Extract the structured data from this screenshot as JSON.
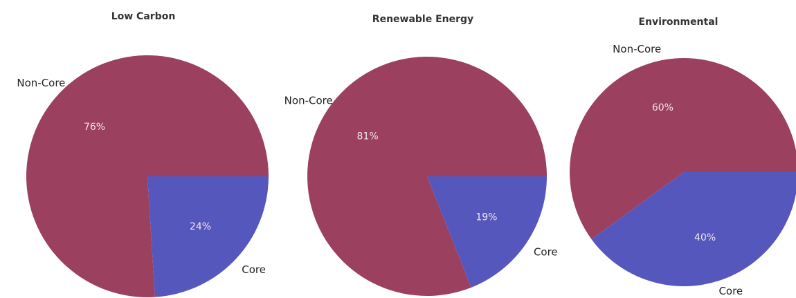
{
  "chart_data": [
    {
      "type": "pie",
      "title": "Low Carbon",
      "slices": [
        {
          "label": "Non-Core",
          "value": 76,
          "display": "76%",
          "color": "#9b405f"
        },
        {
          "label": "Core",
          "value": 24,
          "display": "24%",
          "color": "#5657bd"
        }
      ]
    },
    {
      "type": "pie",
      "title": "Renewable Energy",
      "slices": [
        {
          "label": "Non-Core",
          "value": 81,
          "display": "81%",
          "color": "#9b405f"
        },
        {
          "label": "Core",
          "value": 19,
          "display": "19%",
          "color": "#5657bd"
        }
      ]
    },
    {
      "type": "pie",
      "title": "Environmental",
      "slices": [
        {
          "label": "Non-Core",
          "value": 60,
          "display": "60%",
          "color": "#9b405f"
        },
        {
          "label": "Core",
          "value": 40,
          "display": "40%",
          "color": "#5657bd"
        }
      ]
    }
  ]
}
